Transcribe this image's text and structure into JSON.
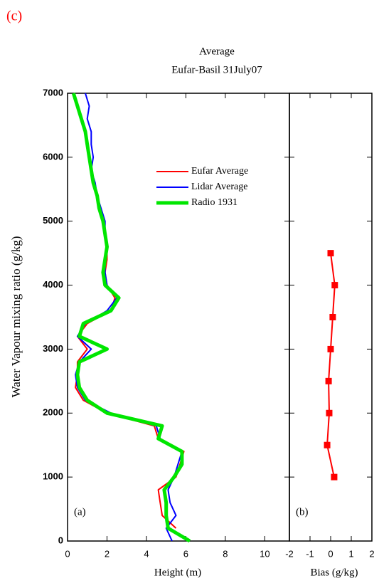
{
  "chart_data": [
    {
      "type": "line",
      "figure_label": "(c)",
      "title": "Average",
      "subtitle": "Eufar-Basil 31July07",
      "x_label": "Height (m)",
      "y_label": "Water Vapour mixing ratio (g/kg)",
      "annotation": "(a)",
      "xlim": [
        0,
        11.25
      ],
      "xticks": [
        0,
        2,
        4,
        6,
        8,
        10
      ],
      "ylim": [
        0,
        7000
      ],
      "yticks": [
        0,
        1000,
        2000,
        3000,
        4000,
        5000,
        6000,
        7000
      ],
      "y": [
        0,
        200,
        400,
        600,
        800,
        1000,
        1200,
        1400,
        1600,
        1800,
        2000,
        2200,
        2400,
        2600,
        2800,
        3000,
        3200,
        3400,
        3600,
        3800,
        4000,
        4200,
        4400,
        4600,
        4800,
        5000,
        5200,
        5400,
        5600,
        5800,
        6000,
        6200,
        6400,
        6600,
        6800,
        7000
      ],
      "series": [
        {
          "name": "Eufar Average",
          "color": "#ff0000",
          "width": 2,
          "values": [
            null,
            5.5,
            4.8,
            4.7,
            4.6,
            5.5,
            5.7,
            5.9,
            4.6,
            4.4,
            2.0,
            0.8,
            0.4,
            0.5,
            0.5,
            1.0,
            0.5,
            1.0,
            2.2,
            2.4,
            2.0,
            1.9,
            2.0,
            2.0,
            1.9,
            1.8,
            null,
            null,
            null,
            null,
            null,
            null,
            null,
            null,
            null,
            null
          ]
        },
        {
          "name": "Lidar Average",
          "color": "#0000ff",
          "width": 2,
          "values": [
            5.3,
            5.0,
            5.5,
            5.2,
            5.1,
            5.4,
            5.6,
            5.8,
            4.7,
            4.5,
            2.2,
            0.9,
            0.5,
            0.4,
            0.6,
            1.2,
            0.5,
            0.9,
            2.0,
            2.5,
            2.0,
            1.9,
            1.9,
            2.0,
            1.9,
            1.9,
            1.7,
            1.5,
            1.4,
            1.2,
            1.3,
            1.2,
            1.2,
            1.0,
            1.1,
            0.9
          ]
        },
        {
          "name": "Radio 1931",
          "color": "#00e600",
          "width": 5,
          "values": [
            6.2,
            5.1,
            5.0,
            5.0,
            4.9,
            5.4,
            5.8,
            5.8,
            4.6,
            4.8,
            2.0,
            1.0,
            0.6,
            0.5,
            0.6,
            2.0,
            0.6,
            0.8,
            2.2,
            2.6,
            1.9,
            1.8,
            1.9,
            2.0,
            1.9,
            1.8,
            1.6,
            1.5,
            1.3,
            1.2,
            1.1,
            1.0,
            0.9,
            0.7,
            0.5,
            0.3
          ]
        }
      ]
    },
    {
      "type": "marker-line",
      "x_label": "Bias (g/kg)",
      "annotation": "(b)",
      "xlim": [
        -2,
        2
      ],
      "xticks": [
        -2,
        -1,
        0,
        1,
        2
      ],
      "ylim": [
        0,
        7000
      ],
      "y": [
        1000,
        1500,
        2000,
        2500,
        3000,
        3500,
        4000,
        4500
      ],
      "series": [
        {
          "color": "#ff0000",
          "values": [
            0.17,
            -0.17,
            -0.07,
            -0.1,
            0.0,
            0.1,
            0.2,
            0.0
          ]
        }
      ]
    }
  ]
}
